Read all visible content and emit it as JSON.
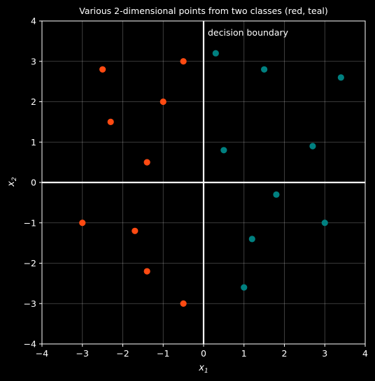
{
  "chart_data": {
    "type": "scatter",
    "title": "Various 2-dimensional points from two classes (red, teal)",
    "xlabel": {
      "base": "x",
      "sub": "1"
    },
    "ylabel": {
      "base": "x",
      "sub": "2"
    },
    "xlim": [
      -4,
      4
    ],
    "ylim": [
      -4,
      4
    ],
    "xticks": [
      -4,
      -3,
      -2,
      -1,
      0,
      1,
      2,
      3,
      4
    ],
    "yticks": [
      -4,
      -3,
      -2,
      -1,
      0,
      1,
      2,
      3,
      4
    ],
    "grid": true,
    "annotation": "decision boundary",
    "boundary": {
      "vertical_x": 0,
      "horizontal_y": 0
    },
    "series": [
      {
        "color": "#ff4a12",
        "points": [
          [
            -2.5,
            2.8
          ],
          [
            -0.5,
            3.0
          ],
          [
            -1.0,
            2.0
          ],
          [
            -2.3,
            1.5
          ],
          [
            -1.4,
            0.5
          ],
          [
            -3.0,
            -1.0
          ],
          [
            -1.7,
            -1.2
          ],
          [
            -1.4,
            -2.2
          ],
          [
            -0.5,
            -3.0
          ]
        ]
      },
      {
        "color": "#008080",
        "points": [
          [
            0.3,
            3.2
          ],
          [
            1.5,
            2.8
          ],
          [
            3.4,
            2.6
          ],
          [
            0.5,
            0.8
          ],
          [
            2.7,
            0.9
          ],
          [
            1.8,
            -0.3
          ],
          [
            3.0,
            -1.0
          ],
          [
            1.2,
            -1.4
          ],
          [
            1.0,
            -2.6
          ]
        ]
      }
    ]
  }
}
